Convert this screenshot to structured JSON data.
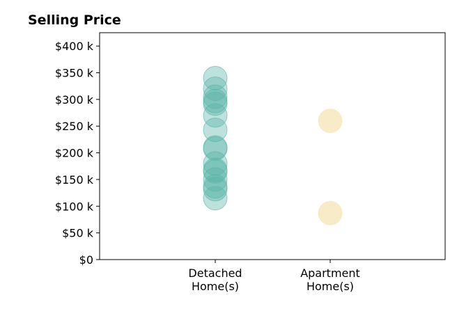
{
  "chart_data": {
    "type": "scatter",
    "title": "Selling Price",
    "xlabel": "",
    "ylabel": "",
    "categories": [
      "Detached\nHome(s)",
      "Apartment\nHome(s)"
    ],
    "ylim": [
      0,
      425000
    ],
    "y_ticks": [
      {
        "value": 0,
        "label": "$0"
      },
      {
        "value": 50000,
        "label": "$50 k"
      },
      {
        "value": 100000,
        "label": "$100 k"
      },
      {
        "value": 150000,
        "label": "$150 k"
      },
      {
        "value": 200000,
        "label": "$200 k"
      },
      {
        "value": 250000,
        "label": "$250 k"
      },
      {
        "value": 300000,
        "label": "$300 k"
      },
      {
        "value": 350000,
        "label": "$350 k"
      },
      {
        "value": 400000,
        "label": "$400 k"
      }
    ],
    "grid": false,
    "legend": "none",
    "series": [
      {
        "category": "Detached\nHome(s)",
        "color": "#5ab4a8",
        "values": [
          340000,
          320000,
          305000,
          297000,
          292000,
          270000,
          243000,
          210000,
          208000,
          180000,
          168000,
          165000,
          150000,
          137000,
          132000,
          115000
        ]
      },
      {
        "category": "Apartment\nHome(s)",
        "color": "#f5e2b0",
        "values": [
          260000,
          87000
        ]
      }
    ]
  }
}
